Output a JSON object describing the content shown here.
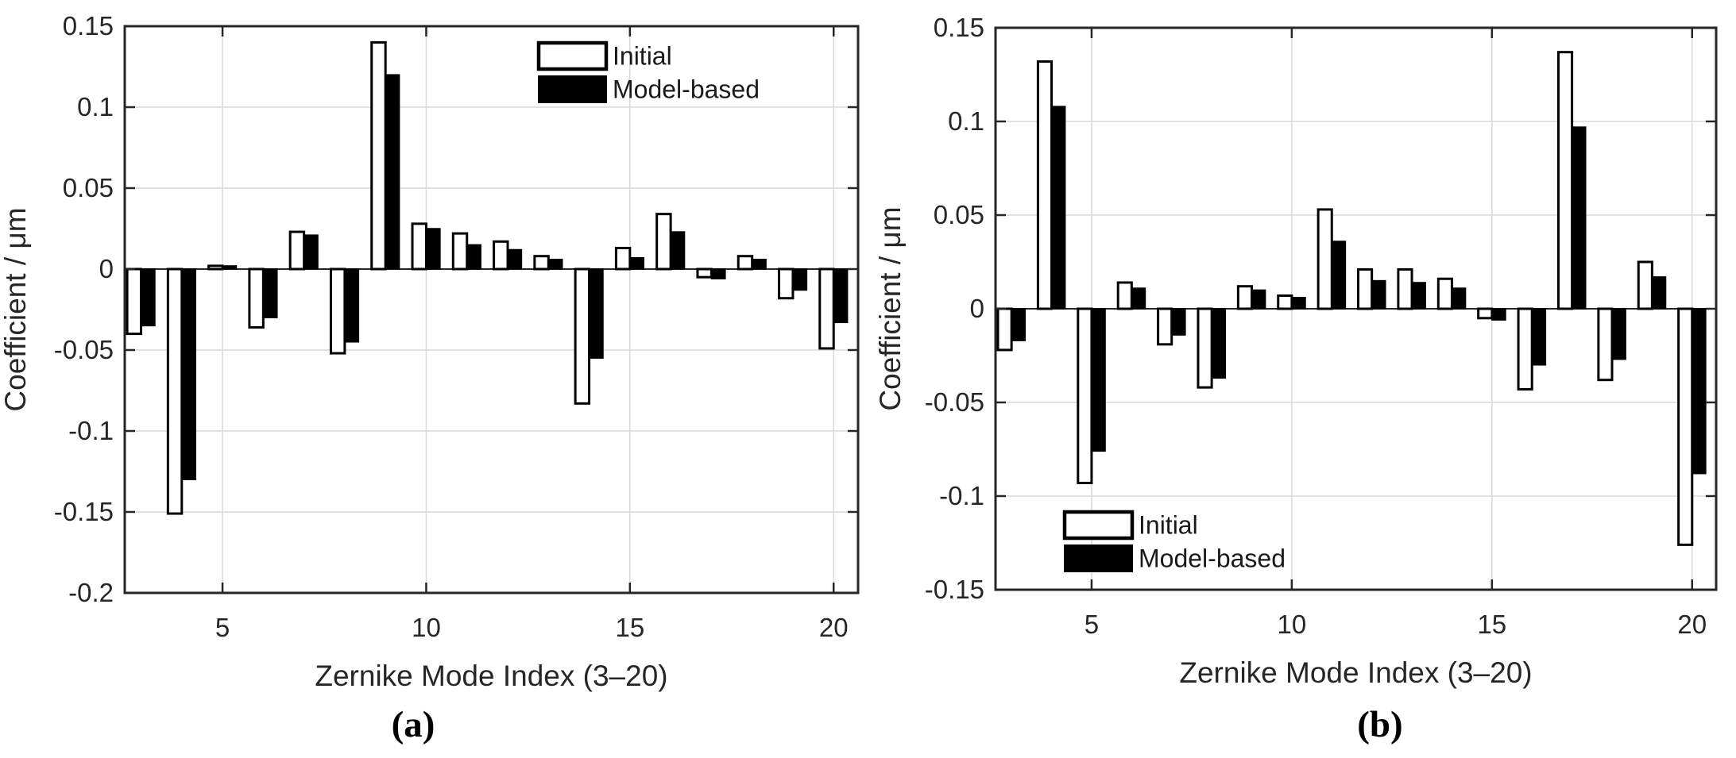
{
  "figure": {
    "background": "#ffffff",
    "axis_color": "#262626",
    "grid_color": "#d9d9d9",
    "zero_line_color": "#262626",
    "bar_outline_color": "#000000",
    "caption_a": "(a)",
    "caption_b": "(b)"
  },
  "chart_data": [
    {
      "id": "a",
      "type": "bar",
      "caption": "(a)",
      "xlabel": "Zernike Mode Index (3–20)",
      "ylabel": "Coefficient / μm",
      "grid": true,
      "legend_position": "top-right",
      "xlim": [
        2.6,
        20.6
      ],
      "ylim": [
        -0.2,
        0.15
      ],
      "xticks": [
        5,
        10,
        15,
        20
      ],
      "xtick_labels": [
        "5",
        "10",
        "15",
        "20"
      ],
      "ytick_values": [
        0.15,
        0.1,
        0.05,
        0,
        -0.05,
        -0.1,
        -0.15,
        -0.2
      ],
      "ytick_labels": [
        "0.15",
        "0.1",
        "0.05",
        "0",
        "-0.05",
        "-0.1",
        "-0.15",
        "-0.2"
      ],
      "categories": [
        3,
        4,
        5,
        6,
        7,
        8,
        9,
        10,
        11,
        12,
        13,
        14,
        15,
        16,
        17,
        18,
        19,
        20
      ],
      "series": [
        {
          "name": "Initial",
          "fill": "#ffffff",
          "values": [
            -0.04,
            -0.151,
            0.002,
            -0.036,
            0.023,
            -0.052,
            0.14,
            0.028,
            0.022,
            0.017,
            0.008,
            -0.083,
            0.013,
            0.034,
            -0.005,
            0.008,
            -0.018,
            -0.049
          ]
        },
        {
          "name": "Model-based",
          "fill": "#000000",
          "values": [
            -0.035,
            -0.13,
            0.002,
            -0.03,
            0.021,
            -0.045,
            0.12,
            0.025,
            0.015,
            0.012,
            0.006,
            -0.055,
            0.007,
            0.023,
            -0.006,
            0.006,
            -0.013,
            -0.033
          ]
        }
      ]
    },
    {
      "id": "b",
      "type": "bar",
      "caption": "(b)",
      "xlabel": "Zernike Mode Index (3–20)",
      "ylabel": "Coefficient / μm",
      "grid": true,
      "legend_position": "bottom-left",
      "xlim": [
        2.6,
        20.6
      ],
      "ylim": [
        -0.15,
        0.15
      ],
      "xticks": [
        5,
        10,
        15,
        20
      ],
      "xtick_labels": [
        "5",
        "10",
        "15",
        "20"
      ],
      "ytick_values": [
        0.15,
        0.1,
        0.05,
        0,
        -0.05,
        -0.1,
        -0.15
      ],
      "ytick_labels": [
        "0.15",
        "0.1",
        "0.05",
        "0",
        "-0.05",
        "-0.1",
        "-0.15"
      ],
      "categories": [
        3,
        4,
        5,
        6,
        7,
        8,
        9,
        10,
        11,
        12,
        13,
        14,
        15,
        16,
        17,
        18,
        19,
        20
      ],
      "series": [
        {
          "name": "Initial",
          "fill": "#ffffff",
          "values": [
            -0.022,
            0.132,
            -0.093,
            0.014,
            -0.019,
            -0.042,
            0.012,
            0.007,
            0.053,
            0.021,
            0.021,
            0.016,
            -0.005,
            -0.043,
            0.137,
            -0.038,
            0.025,
            -0.126
          ]
        },
        {
          "name": "Model-based",
          "fill": "#000000",
          "values": [
            -0.017,
            0.108,
            -0.076,
            0.011,
            -0.014,
            -0.037,
            0.01,
            0.006,
            0.036,
            0.015,
            0.014,
            0.011,
            -0.006,
            -0.03,
            0.097,
            -0.027,
            0.017,
            -0.088
          ]
        }
      ]
    }
  ]
}
